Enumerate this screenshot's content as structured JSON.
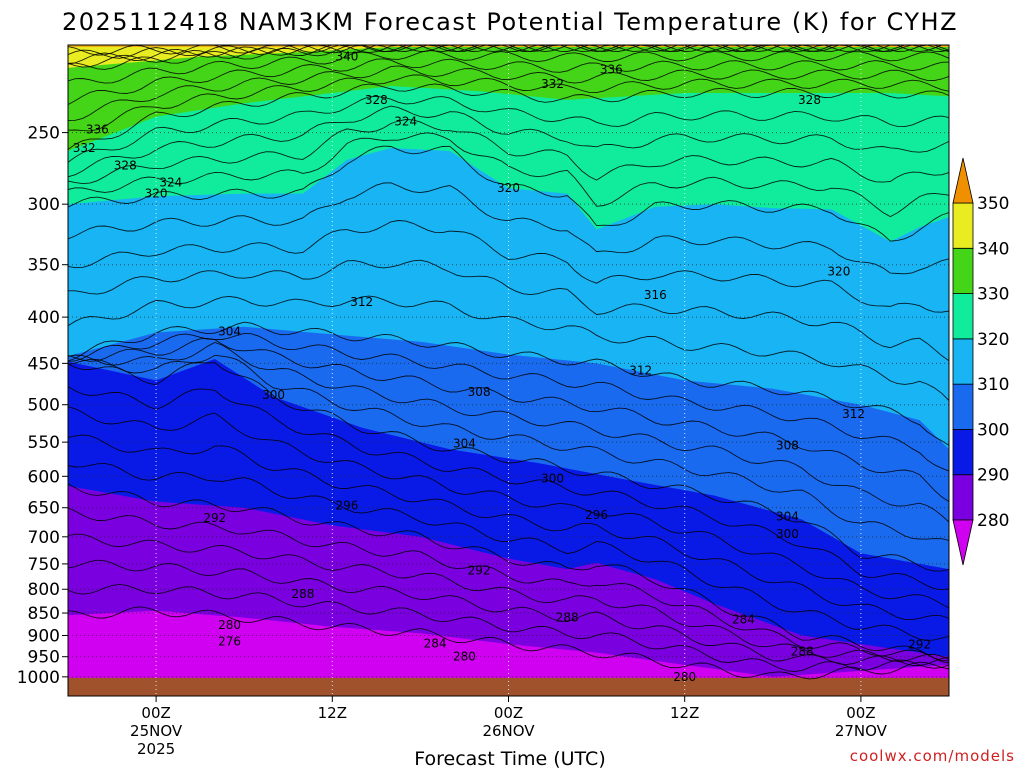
{
  "chart_data": {
    "type": "heatmap",
    "title": "2025112418 NAM3KM Forecast Potential Temperature (K) for CYHZ",
    "xlabel": "Forecast Time (UTC)",
    "ylabel": "",
    "credit": "coolwx.com/models",
    "y_axis": {
      "ticks": [
        250,
        300,
        350,
        400,
        450,
        500,
        550,
        600,
        650,
        700,
        750,
        800,
        850,
        900,
        950,
        1000
      ],
      "range": [
        200,
        1050
      ],
      "scale": "log",
      "inverted": true
    },
    "x_axis": {
      "range_hours": [
        -6,
        54
      ],
      "ticks": [
        {
          "hour": 0,
          "label": "00Z",
          "sub": [
            "25NOV",
            "2025"
          ]
        },
        {
          "hour": 12,
          "label": "12Z",
          "sub": []
        },
        {
          "hour": 24,
          "label": "00Z",
          "sub": [
            "26NOV"
          ]
        },
        {
          "hour": 36,
          "label": "12Z",
          "sub": []
        },
        {
          "hour": 48,
          "label": "00Z",
          "sub": [
            "27NOV"
          ]
        }
      ]
    },
    "colorbar": {
      "levels": [
        280,
        290,
        300,
        310,
        320,
        330,
        340,
        350
      ],
      "colors": [
        "#7a00e0",
        "#0a1ae6",
        "#1a6af0",
        "#18b4f4",
        "#10ec9c",
        "#44d418",
        "#e8ec20",
        "#f0ac14"
      ],
      "under_color": "#d000f0",
      "over_color": "#f09000"
    },
    "fill_colors": {
      "lt280": "#d000f0",
      "280_290": "#7a00e0",
      "290_300": "#0a1ae6",
      "300_310": "#1a6af0",
      "310_320": "#18b4f4",
      "320_330": "#10ec9c",
      "330_340": "#44d418",
      "340_350": "#e8ec20",
      "gt350": "#f0ac14",
      "ground": "#a0522d"
    },
    "contour_interval": 2,
    "fill_boundaries": [
      {
        "level": 350,
        "points": [
          [
            -6,
            201
          ],
          [
            54,
            201
          ]
        ]
      },
      {
        "level": 340,
        "points": [
          [
            -6,
            212
          ],
          [
            3,
            206
          ],
          [
            9,
            204
          ],
          [
            16,
            201
          ],
          [
            54,
            201
          ]
        ]
      },
      {
        "level": 330,
        "points": [
          [
            -6,
            262
          ],
          [
            0,
            240
          ],
          [
            6,
            232
          ],
          [
            12,
            226
          ],
          [
            16,
            222
          ],
          [
            22,
            225
          ],
          [
            28,
            230
          ],
          [
            36,
            226
          ],
          [
            44,
            226
          ],
          [
            50,
            226
          ],
          [
            54,
            228
          ]
        ]
      },
      {
        "level": 320,
        "points": [
          [
            -6,
            300
          ],
          [
            0,
            294
          ],
          [
            6,
            292
          ],
          [
            10,
            292
          ],
          [
            13,
            268
          ],
          [
            16,
            260
          ],
          [
            20,
            262
          ],
          [
            24,
            288
          ],
          [
            28,
            292
          ],
          [
            30,
            320
          ],
          [
            34,
            302
          ],
          [
            38,
            300
          ],
          [
            42,
            303
          ],
          [
            46,
            304
          ],
          [
            50,
            330
          ],
          [
            52,
            318
          ],
          [
            54,
            310
          ]
        ]
      },
      {
        "level": 310,
        "points": [
          [
            -6,
            442
          ],
          [
            0,
            416
          ],
          [
            6,
            410
          ],
          [
            12,
            418
          ],
          [
            18,
            426
          ],
          [
            24,
            440
          ],
          [
            30,
            450
          ],
          [
            36,
            470
          ],
          [
            42,
            480
          ],
          [
            48,
            500
          ],
          [
            52,
            520
          ],
          [
            54,
            560
          ]
        ]
      },
      {
        "level": 300,
        "points": [
          [
            -6,
            448
          ],
          [
            0,
            470
          ],
          [
            4,
            445
          ],
          [
            8,
            490
          ],
          [
            14,
            530
          ],
          [
            20,
            560
          ],
          [
            26,
            580
          ],
          [
            32,
            605
          ],
          [
            38,
            630
          ],
          [
            44,
            670
          ],
          [
            48,
            730
          ],
          [
            54,
            760
          ]
        ]
      },
      {
        "level": 290,
        "points": [
          [
            -6,
            615
          ],
          [
            0,
            640
          ],
          [
            6,
            650
          ],
          [
            12,
            680
          ],
          [
            18,
            700
          ],
          [
            24,
            740
          ],
          [
            28,
            760
          ],
          [
            30,
            748
          ],
          [
            34,
            780
          ],
          [
            38,
            830
          ],
          [
            44,
            900
          ],
          [
            50,
            930
          ],
          [
            54,
            950
          ]
        ]
      },
      {
        "level": 280,
        "points": [
          [
            -6,
            855
          ],
          [
            0,
            845
          ],
          [
            6,
            860
          ],
          [
            12,
            880
          ],
          [
            18,
            895
          ],
          [
            24,
            920
          ],
          [
            30,
            940
          ],
          [
            36,
            970
          ],
          [
            42,
            1000
          ],
          [
            48,
            985
          ],
          [
            54,
            970
          ]
        ]
      }
    ],
    "contour_labels": [
      {
        "text": "340",
        "hour": 13,
        "p": 206
      },
      {
        "text": "336",
        "hour": 31,
        "p": 213
      },
      {
        "text": "332",
        "hour": 27,
        "p": 221
      },
      {
        "text": "328",
        "hour": 15,
        "p": 230
      },
      {
        "text": "328",
        "hour": 44.5,
        "p": 230
      },
      {
        "text": "324",
        "hour": 17,
        "p": 243
      },
      {
        "text": "336",
        "hour": -4,
        "p": 248
      },
      {
        "text": "332",
        "hour": -4.9,
        "p": 260
      },
      {
        "text": "328",
        "hour": -2.1,
        "p": 272
      },
      {
        "text": "324",
        "hour": 1,
        "p": 284
      },
      {
        "text": "320",
        "hour": 0,
        "p": 292
      },
      {
        "text": "320",
        "hour": 24,
        "p": 288
      },
      {
        "text": "320",
        "hour": 46.5,
        "p": 356
      },
      {
        "text": "316",
        "hour": 34,
        "p": 378
      },
      {
        "text": "312",
        "hour": 14,
        "p": 385
      },
      {
        "text": "304",
        "hour": 5,
        "p": 415
      },
      {
        "text": "312",
        "hour": 33,
        "p": 458
      },
      {
        "text": "300",
        "hour": 8,
        "p": 488
      },
      {
        "text": "308",
        "hour": 22,
        "p": 484
      },
      {
        "text": "312",
        "hour": 47.5,
        "p": 512
      },
      {
        "text": "304",
        "hour": 21,
        "p": 552
      },
      {
        "text": "308",
        "hour": 43,
        "p": 555
      },
      {
        "text": "300",
        "hour": 27,
        "p": 603
      },
      {
        "text": "296",
        "hour": 13,
        "p": 646
      },
      {
        "text": "296",
        "hour": 30,
        "p": 662
      },
      {
        "text": "292",
        "hour": 4,
        "p": 667
      },
      {
        "text": "304",
        "hour": 43,
        "p": 665
      },
      {
        "text": "300",
        "hour": 43,
        "p": 695
      },
      {
        "text": "292",
        "hour": 22,
        "p": 763
      },
      {
        "text": "288",
        "hour": 10,
        "p": 810
      },
      {
        "text": "288",
        "hour": 28,
        "p": 860
      },
      {
        "text": "284",
        "hour": 40,
        "p": 864
      },
      {
        "text": "280",
        "hour": 5,
        "p": 876
      },
      {
        "text": "276",
        "hour": 5,
        "p": 914
      },
      {
        "text": "284",
        "hour": 19,
        "p": 918
      },
      {
        "text": "292",
        "hour": 52,
        "p": 921
      },
      {
        "text": "280",
        "hour": 21,
        "p": 950
      },
      {
        "text": "288",
        "hour": 44,
        "p": 938
      },
      {
        "text": "280",
        "hour": 36,
        "p": 1000
      }
    ]
  }
}
